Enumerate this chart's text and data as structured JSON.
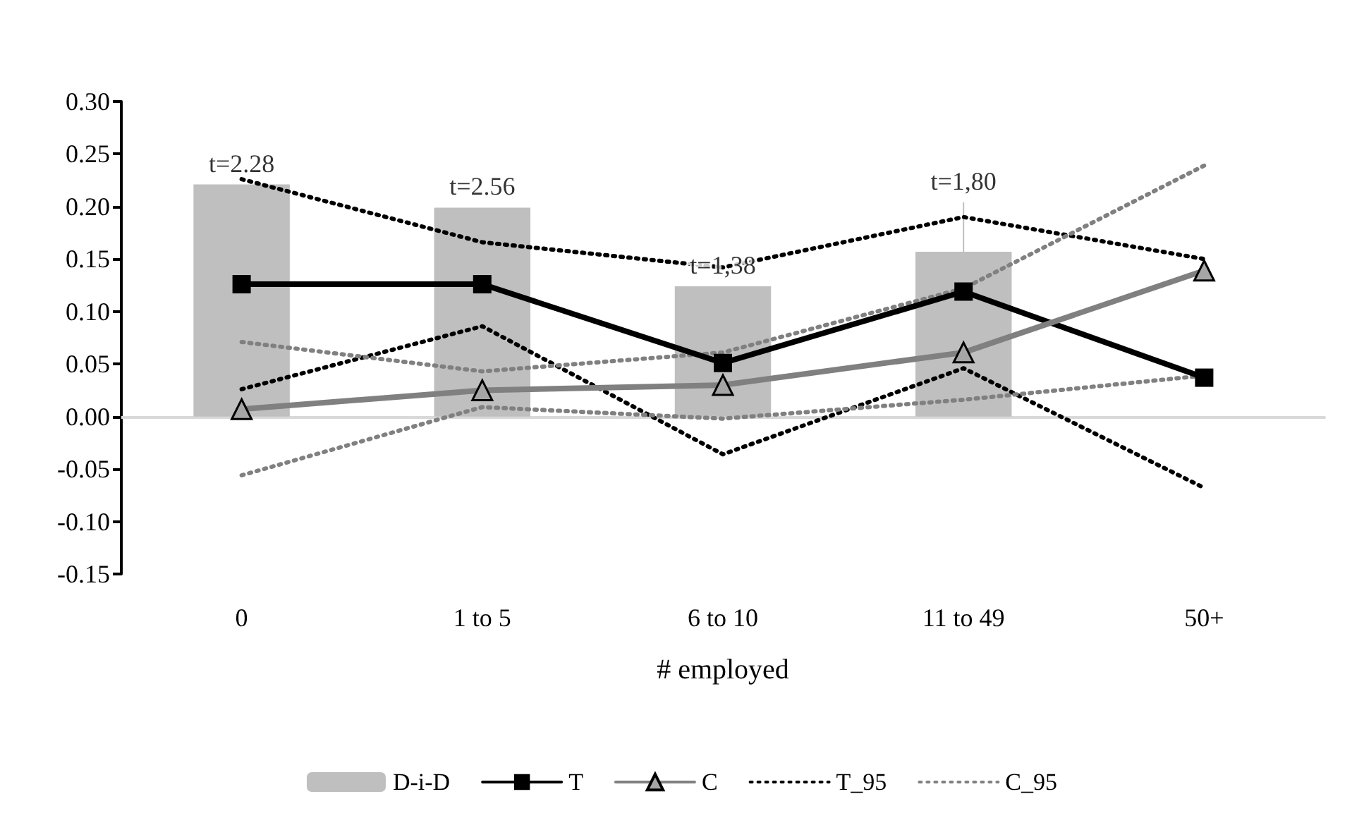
{
  "chart_data": {
    "type": "line",
    "xlabel": "# employed",
    "categories": [
      "0",
      "1 to 5",
      "6 to 10",
      "11 to 49",
      "50+"
    ],
    "ylim": [
      -0.15,
      0.3
    ],
    "yticks": [
      {
        "value": -0.15,
        "label": "-0.15"
      },
      {
        "value": -0.1,
        "label": "-0.10"
      },
      {
        "value": -0.05,
        "label": "-0.05"
      },
      {
        "value": 0,
        "label": "0.00"
      },
      {
        "value": 0.05,
        "label": "0.05"
      },
      {
        "value": 0.1,
        "label": "0.10"
      },
      {
        "value": 0.15,
        "label": "0.15"
      },
      {
        "value": 0.2,
        "label": "0.20"
      },
      {
        "value": 0.25,
        "label": "0.25"
      },
      {
        "value": 0.3,
        "label": "0.30"
      }
    ],
    "legend": "bottom",
    "annotations": [
      {
        "text": "t=2.28",
        "x": "0",
        "y": 0.221
      },
      {
        "text": "t=2.56",
        "x": "1 to 5",
        "y": 0.199
      },
      {
        "text": "t=1,38",
        "x": "6 to 10",
        "y": 0.124
      },
      {
        "text": "t=1,80",
        "x": "11 to 49",
        "y": 0.204
      }
    ],
    "series": [
      {
        "name": "D-i-D",
        "type": "bar",
        "color": "#bfbfbf",
        "values": [
          0.221,
          0.199,
          0.124,
          0.157,
          null
        ],
        "errors": [
          null,
          null,
          null,
          [
            0.157,
            0.204
          ],
          null
        ]
      },
      {
        "name": "T",
        "color": "#000000",
        "marker": "square",
        "line_style": "solid",
        "values": [
          0.126,
          0.126,
          0.051,
          0.119,
          0.037
        ]
      },
      {
        "name": "C",
        "color": "#808080",
        "marker": "triangle",
        "line_style": "solid",
        "values": [
          0.007,
          0.025,
          0.03,
          0.061,
          0.139
        ]
      },
      {
        "name": "T_95",
        "color": "#000000",
        "marker": "none",
        "line_style": "dotted",
        "values": [
          0.226,
          0.166,
          0.142,
          0.19,
          0.15
        ]
      },
      {
        "color": "#000000",
        "marker": "none",
        "line_style": "dotted",
        "values": [
          0.026,
          0.086,
          -0.036,
          0.046,
          -0.068
        ]
      },
      {
        "name": "C_95",
        "color": "#808080",
        "marker": "none",
        "line_style": "dotted",
        "values": [
          0.071,
          0.043,
          0.061,
          0.122,
          0.239
        ]
      },
      {
        "color": "#808080",
        "marker": "none",
        "line_style": "dotted",
        "values": [
          -0.056,
          0.009,
          -0.002,
          0.016,
          0.039
        ]
      }
    ]
  }
}
